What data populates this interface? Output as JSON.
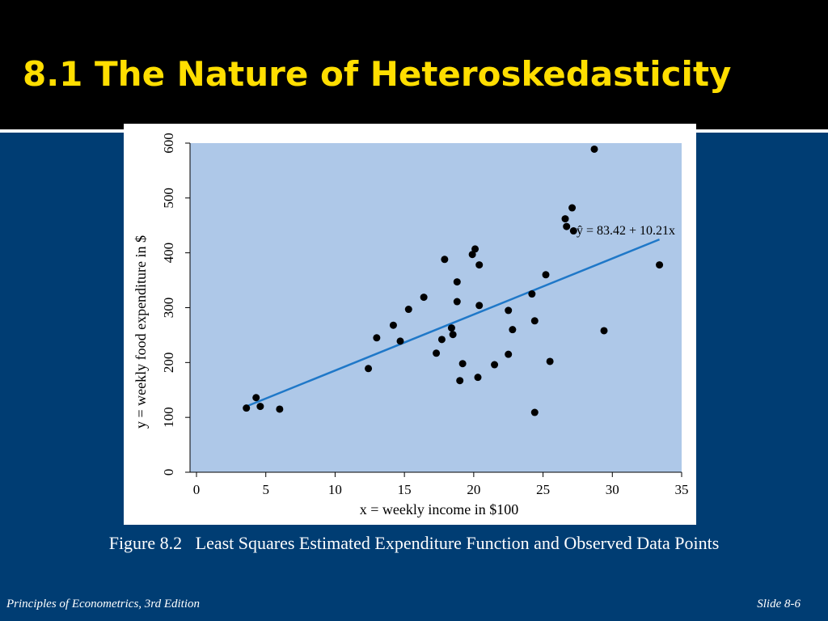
{
  "slide": {
    "title": "8.1 The Nature of Heteroskedasticity",
    "caption": "Figure 8.2   Least Squares Estimated Expenditure Function and Observed Data Points",
    "footer_left": "Principles of Econometrics, 3rd Edition",
    "footer_right": "Slide 8-6"
  },
  "chart_data": {
    "type": "scatter",
    "x_label": "x = weekly income in $100",
    "y_label": "y = weekly food expenditure in $",
    "annotation": "ŷ = 83.42 + 10.21x",
    "color": "#000000",
    "plot_background": "#aec8e8",
    "x": [
      3.6,
      4.3,
      4.6,
      6.0,
      12.4,
      13.0,
      14.2,
      14.7,
      15.3,
      16.4,
      17.3,
      17.7,
      17.9,
      18.4,
      18.5,
      18.8,
      18.8,
      19.0,
      19.2,
      19.9,
      20.1,
      20.3,
      20.4,
      20.4,
      21.5,
      22.5,
      22.5,
      22.8,
      24.2,
      24.4,
      24.4,
      25.2,
      25.5,
      26.6,
      26.7,
      27.1,
      27.2,
      28.7,
      29.4,
      33.4
    ],
    "values": [
      117,
      136,
      120,
      115,
      189,
      245,
      268,
      239,
      297,
      319,
      217,
      242,
      388,
      263,
      251,
      347,
      311,
      167,
      198,
      397,
      407,
      173,
      304,
      378,
      196,
      215,
      295,
      260,
      325,
      276,
      109,
      360,
      202,
      462,
      448,
      482,
      440,
      589,
      258,
      378
    ],
    "fit_line": {
      "color": "#1f78c8",
      "x": [
        3.7,
        33.4
      ],
      "y": [
        121.1,
        424.4
      ]
    },
    "xlim": [
      0,
      35
    ],
    "xticks": [
      0,
      5,
      10,
      15,
      20,
      25,
      30,
      35
    ],
    "ylim": [
      0,
      600
    ],
    "yticks": [
      0,
      100,
      200,
      300,
      400,
      500,
      600
    ]
  }
}
